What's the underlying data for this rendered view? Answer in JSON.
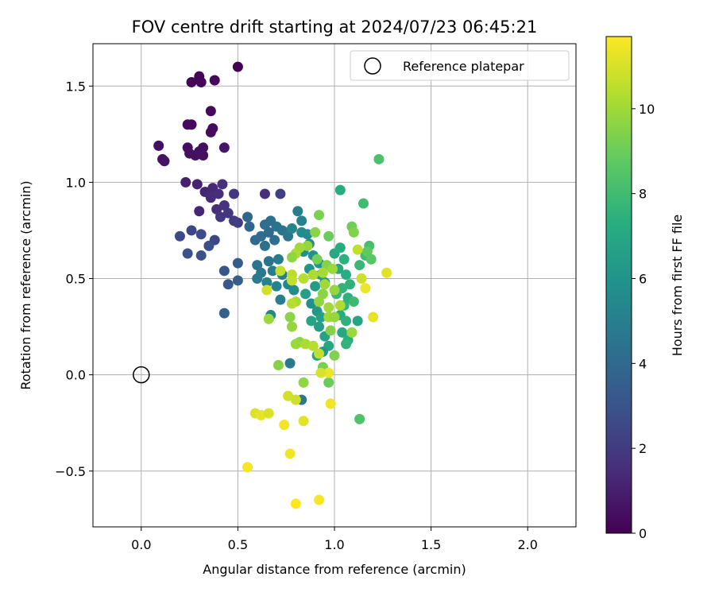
{
  "chart_data": {
    "type": "scatter",
    "title": "FOV centre drift starting at 2024/07/23 06:45:21",
    "xlabel": "Angular distance from reference (arcmin)",
    "ylabel": "Rotation from reference (arcmin)",
    "xlim": [
      -0.25,
      2.25
    ],
    "ylim": [
      -0.79,
      1.72
    ],
    "xticks": [
      0.0,
      0.5,
      1.0,
      1.5,
      2.0
    ],
    "xtick_labels": [
      "0.0",
      "0.5",
      "1.0",
      "1.5",
      "2.0"
    ],
    "yticks": [
      -0.5,
      0.0,
      0.5,
      1.0,
      1.5
    ],
    "ytick_labels": [
      "−0.5",
      "0.0",
      "0.5",
      "1.0",
      "1.5"
    ],
    "grid": true,
    "legend": {
      "position": "upper right",
      "entries": [
        "Reference platepar"
      ]
    },
    "reference_point": {
      "x": 0.0,
      "y": 0.0,
      "label": "Reference platepar"
    },
    "colormap": "viridis",
    "colorbar": {
      "label": "Hours from first FF file",
      "range": [
        0,
        11.7
      ],
      "ticks": [
        0,
        2,
        4,
        6,
        8,
        10
      ],
      "tick_labels": [
        "0",
        "2",
        "4",
        "6",
        "8",
        "10"
      ]
    },
    "points": [
      [
        0.5,
        1.6,
        0.05
      ],
      [
        0.3,
        1.55,
        0.1
      ],
      [
        0.26,
        1.52,
        0.1
      ],
      [
        0.31,
        1.52,
        0.15
      ],
      [
        0.38,
        1.53,
        0.2
      ],
      [
        0.36,
        1.37,
        0.25
      ],
      [
        0.24,
        1.3,
        0.3
      ],
      [
        0.26,
        1.3,
        0.3
      ],
      [
        0.37,
        1.28,
        0.35
      ],
      [
        0.36,
        1.26,
        0.35
      ],
      [
        0.09,
        1.19,
        0.4
      ],
      [
        0.24,
        1.18,
        0.4
      ],
      [
        0.32,
        1.18,
        0.45
      ],
      [
        0.3,
        1.16,
        0.45
      ],
      [
        0.25,
        1.15,
        0.5
      ],
      [
        0.28,
        1.14,
        0.5
      ],
      [
        0.32,
        1.14,
        0.55
      ],
      [
        0.11,
        1.12,
        0.55
      ],
      [
        0.12,
        1.11,
        0.6
      ],
      [
        0.43,
        1.18,
        0.7
      ],
      [
        0.23,
        1.0,
        1.0
      ],
      [
        0.29,
        0.99,
        1.1
      ],
      [
        0.33,
        0.95,
        1.2
      ],
      [
        0.37,
        0.97,
        1.3
      ],
      [
        0.36,
        0.92,
        1.4
      ],
      [
        0.4,
        0.94,
        1.5
      ],
      [
        0.42,
        0.99,
        1.6
      ],
      [
        0.3,
        0.85,
        1.2
      ],
      [
        0.39,
        0.86,
        1.5
      ],
      [
        0.43,
        0.88,
        1.7
      ],
      [
        0.45,
        0.84,
        1.8
      ],
      [
        0.41,
        0.82,
        1.9
      ],
      [
        0.48,
        0.8,
        2.0
      ],
      [
        0.5,
        0.79,
        2.1
      ],
      [
        0.48,
        0.94,
        1.8
      ],
      [
        0.64,
        0.94,
        1.6
      ],
      [
        0.72,
        0.94,
        2.2
      ],
      [
        0.26,
        0.75,
        2.5
      ],
      [
        0.2,
        0.72,
        2.6
      ],
      [
        0.31,
        0.73,
        2.7
      ],
      [
        0.38,
        0.7,
        2.5
      ],
      [
        0.35,
        0.67,
        2.8
      ],
      [
        0.24,
        0.63,
        2.9
      ],
      [
        0.31,
        0.62,
        3.0
      ],
      [
        0.43,
        0.54,
        3.1
      ],
      [
        0.45,
        0.47,
        3.2
      ],
      [
        0.5,
        0.58,
        3.4
      ],
      [
        0.5,
        0.49,
        3.5
      ],
      [
        0.43,
        0.32,
        3.6
      ],
      [
        0.55,
        0.82,
        3.8
      ],
      [
        0.56,
        0.77,
        3.9
      ],
      [
        0.59,
        0.7,
        4.0
      ],
      [
        0.62,
        0.72,
        4.1
      ],
      [
        0.64,
        0.78,
        4.2
      ],
      [
        0.67,
        0.8,
        4.3
      ],
      [
        0.7,
        0.77,
        4.4
      ],
      [
        0.73,
        0.75,
        4.5
      ],
      [
        0.76,
        0.72,
        4.6
      ],
      [
        0.66,
        0.74,
        4.0
      ],
      [
        0.69,
        0.7,
        4.2
      ],
      [
        0.64,
        0.67,
        4.3
      ],
      [
        0.6,
        0.57,
        4.5
      ],
      [
        0.62,
        0.53,
        4.6
      ],
      [
        0.66,
        0.59,
        4.4
      ],
      [
        0.68,
        0.54,
        4.8
      ],
      [
        0.71,
        0.6,
        4.9
      ],
      [
        0.73,
        0.52,
        5.0
      ],
      [
        0.6,
        0.5,
        4.7
      ],
      [
        0.65,
        0.48,
        5.1
      ],
      [
        0.7,
        0.46,
        5.2
      ],
      [
        0.67,
        0.31,
        5.3
      ],
      [
        0.72,
        0.39,
        5.0
      ],
      [
        0.76,
        0.47,
        5.4
      ],
      [
        0.79,
        0.44,
        5.5
      ],
      [
        0.81,
        0.85,
        5.0
      ],
      [
        0.83,
        0.8,
        5.2
      ],
      [
        0.78,
        0.76,
        5.3
      ],
      [
        0.83,
        0.74,
        5.5
      ],
      [
        0.86,
        0.73,
        5.6
      ],
      [
        0.87,
        0.68,
        5.7
      ],
      [
        0.84,
        0.64,
        5.8
      ],
      [
        0.89,
        0.62,
        5.9
      ],
      [
        0.92,
        0.58,
        6.0
      ],
      [
        0.87,
        0.55,
        6.1
      ],
      [
        0.93,
        0.52,
        6.2
      ],
      [
        0.95,
        0.48,
        6.3
      ],
      [
        0.9,
        0.46,
        6.4
      ],
      [
        0.85,
        0.42,
        6.5
      ],
      [
        0.88,
        0.37,
        5.8
      ],
      [
        0.91,
        0.33,
        6.2
      ],
      [
        0.93,
        0.3,
        6.6
      ],
      [
        0.88,
        0.28,
        6.8
      ],
      [
        0.92,
        0.25,
        6.5
      ],
      [
        0.95,
        0.2,
        6.7
      ],
      [
        0.97,
        0.15,
        6.9
      ],
      [
        0.94,
        0.12,
        6.2
      ],
      [
        0.91,
        0.1,
        6.8
      ],
      [
        0.77,
        0.06,
        4.8
      ],
      [
        0.83,
        -0.13,
        4.6
      ],
      [
        1.03,
        0.96,
        7.2
      ],
      [
        1.0,
        0.63,
        7.0
      ],
      [
        1.03,
        0.66,
        7.2
      ],
      [
        1.05,
        0.6,
        7.4
      ],
      [
        1.02,
        0.55,
        7.1
      ],
      [
        1.06,
        0.52,
        7.3
      ],
      [
        1.08,
        0.47,
        7.5
      ],
      [
        1.04,
        0.45,
        7.6
      ],
      [
        1.01,
        0.42,
        7.8
      ],
      [
        1.07,
        0.4,
        7.4
      ],
      [
        1.05,
        0.36,
        7.7
      ],
      [
        1.1,
        0.38,
        7.9
      ],
      [
        1.03,
        0.31,
        7.2
      ],
      [
        1.06,
        0.28,
        7.5
      ],
      [
        1.04,
        0.22,
        7.0
      ],
      [
        1.07,
        0.18,
        7.3
      ],
      [
        1.06,
        0.16,
        7.6
      ],
      [
        1.09,
        0.22,
        7.9
      ],
      [
        1.12,
        0.28,
        6.8
      ],
      [
        1.13,
        0.57,
        7.8
      ],
      [
        1.16,
        0.62,
        8.0
      ],
      [
        1.18,
        0.67,
        8.2
      ],
      [
        1.15,
        0.89,
        8.0
      ],
      [
        1.23,
        1.12,
        8.3
      ],
      [
        1.13,
        -0.23,
        8.4
      ],
      [
        1.19,
        0.6,
        8.6
      ],
      [
        1.17,
        0.64,
        8.8
      ],
      [
        0.97,
        0.72,
        9.0
      ],
      [
        0.92,
        0.83,
        9.3
      ],
      [
        1.09,
        0.77,
        9.1
      ],
      [
        1.1,
        0.74,
        9.4
      ],
      [
        0.9,
        0.74,
        9.6
      ],
      [
        0.86,
        0.67,
        9.8
      ],
      [
        0.82,
        0.66,
        10.0
      ],
      [
        0.8,
        0.63,
        10.2
      ],
      [
        0.78,
        0.61,
        9.7
      ],
      [
        0.91,
        0.6,
        9.2
      ],
      [
        0.96,
        0.57,
        9.5
      ],
      [
        0.99,
        0.55,
        9.9
      ],
      [
        0.94,
        0.53,
        10.1
      ],
      [
        0.89,
        0.52,
        10.3
      ],
      [
        0.84,
        0.5,
        10.4
      ],
      [
        0.78,
        0.52,
        10.5
      ],
      [
        0.72,
        0.54,
        10.6
      ],
      [
        0.78,
        0.49,
        10.6
      ],
      [
        0.95,
        0.47,
        10.0
      ],
      [
        1.0,
        0.44,
        9.8
      ],
      [
        0.94,
        0.42,
        9.6
      ],
      [
        0.92,
        0.38,
        9.7
      ],
      [
        0.97,
        0.35,
        10.0
      ],
      [
        1.03,
        0.36,
        10.3
      ],
      [
        0.8,
        0.38,
        10.1
      ],
      [
        0.78,
        0.37,
        10.4
      ],
      [
        0.65,
        0.44,
        10.9
      ],
      [
        0.66,
        0.29,
        9.9
      ],
      [
        0.77,
        0.3,
        9.6
      ],
      [
        0.78,
        0.25,
        9.8
      ],
      [
        0.82,
        0.17,
        9.6
      ],
      [
        0.8,
        0.16,
        9.9
      ],
      [
        0.85,
        0.16,
        10.2
      ],
      [
        0.89,
        0.15,
        10.4
      ],
      [
        0.92,
        0.11,
        10.6
      ],
      [
        0.97,
        0.3,
        10.0
      ],
      [
        1.0,
        0.3,
        9.8
      ],
      [
        0.98,
        0.23,
        9.5
      ],
      [
        1.0,
        0.1,
        9.4
      ],
      [
        0.94,
        0.04,
        9.2
      ],
      [
        0.97,
        -0.04,
        9.0
      ],
      [
        0.71,
        0.05,
        9.5
      ],
      [
        0.84,
        -0.04,
        9.7
      ],
      [
        1.09,
        0.22,
        9.9
      ],
      [
        1.12,
        0.65,
        10.6
      ],
      [
        1.14,
        0.5,
        10.8
      ],
      [
        1.16,
        0.45,
        11.4
      ],
      [
        1.2,
        0.3,
        11.3
      ],
      [
        1.27,
        0.53,
        11.2
      ],
      [
        0.97,
        0.01,
        11.4
      ],
      [
        0.93,
        0.01,
        11.0
      ],
      [
        0.76,
        -0.11,
        10.9
      ],
      [
        0.8,
        -0.13,
        10.8
      ],
      [
        0.98,
        -0.15,
        11.5
      ],
      [
        0.59,
        -0.2,
        11.1
      ],
      [
        0.62,
        -0.21,
        11.3
      ],
      [
        0.66,
        -0.2,
        11.0
      ],
      [
        0.74,
        -0.26,
        11.5
      ],
      [
        0.84,
        -0.24,
        11.2
      ],
      [
        0.55,
        -0.48,
        11.6
      ],
      [
        0.77,
        -0.41,
        11.5
      ],
      [
        0.8,
        -0.67,
        11.7
      ],
      [
        0.92,
        -0.65,
        11.6
      ]
    ]
  }
}
